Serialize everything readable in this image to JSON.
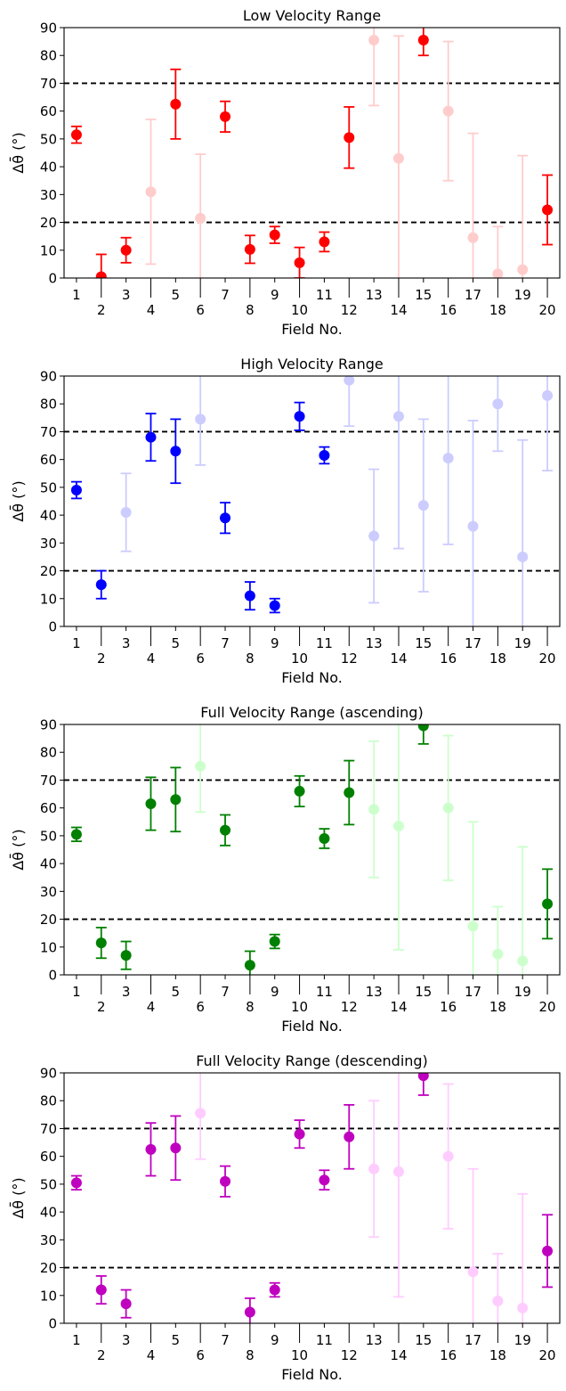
{
  "chart_data": [
    {
      "type": "scatter",
      "title": "Low Velocity Range",
      "xlabel": "Field No.",
      "ylabel": "Δθ̄ (°)",
      "ylim": [
        0,
        90
      ],
      "xlim": [
        0.5,
        20.5
      ],
      "yticks": [
        0,
        10,
        20,
        30,
        40,
        50,
        60,
        70,
        80,
        90
      ],
      "xticks_upper": [
        1,
        3,
        5,
        7,
        9,
        11,
        13,
        15,
        17,
        19
      ],
      "xticks_lower": [
        2,
        4,
        6,
        8,
        10,
        12,
        14,
        16,
        18,
        20
      ],
      "reference_lines": [
        20,
        70
      ],
      "color": "#ff0000",
      "faded_color": "#ffcccc",
      "points": [
        {
          "x": 1,
          "y": 51.5,
          "yerr": 3,
          "faded": false
        },
        {
          "x": 2,
          "y": 0.5,
          "yerr": 8,
          "faded": false
        },
        {
          "x": 3,
          "y": 10,
          "yerr": 4.5,
          "faded": false
        },
        {
          "x": 4,
          "y": 31,
          "yerr": 26,
          "faded": true
        },
        {
          "x": 5,
          "y": 62.5,
          "yerr": 12.5,
          "faded": false
        },
        {
          "x": 6,
          "y": 21.5,
          "yerr": 23,
          "faded": true
        },
        {
          "x": 7,
          "y": 58,
          "yerr": 5.5,
          "faded": false
        },
        {
          "x": 8,
          "y": 10.3,
          "yerr": 5,
          "faded": false
        },
        {
          "x": 9,
          "y": 15.5,
          "yerr": 3,
          "faded": false
        },
        {
          "x": 10,
          "y": 5.5,
          "yerr": 5.5,
          "faded": false
        },
        {
          "x": 11,
          "y": 13,
          "yerr": 3.5,
          "faded": false
        },
        {
          "x": 12,
          "y": 50.5,
          "yerr": 11,
          "faded": false
        },
        {
          "x": 13,
          "y": 85.5,
          "yerr": 23.5,
          "faded": true
        },
        {
          "x": 14,
          "y": 43,
          "yerr": 44,
          "faded": true
        },
        {
          "x": 15,
          "y": 85.5,
          "yerr": 5.5,
          "faded": false
        },
        {
          "x": 16,
          "y": 60,
          "yerr": 25,
          "faded": true
        },
        {
          "x": 17,
          "y": 14.5,
          "yerr": 37.5,
          "faded": true
        },
        {
          "x": 18,
          "y": 1.5,
          "yerr": 17,
          "faded": true
        },
        {
          "x": 19,
          "y": 3,
          "yerr": 41,
          "faded": true
        },
        {
          "x": 20,
          "y": 24.5,
          "yerr": 12.5,
          "faded": false
        }
      ]
    },
    {
      "type": "scatter",
      "title": "High Velocity Range",
      "xlabel": "Field No.",
      "ylabel": "Δθ̄ (°)",
      "ylim": [
        0,
        90
      ],
      "xlim": [
        0.5,
        20.5
      ],
      "yticks": [
        0,
        10,
        20,
        30,
        40,
        50,
        60,
        70,
        80,
        90
      ],
      "xticks_upper": [
        1,
        3,
        5,
        7,
        9,
        11,
        13,
        15,
        17,
        19
      ],
      "xticks_lower": [
        2,
        4,
        6,
        8,
        10,
        12,
        14,
        16,
        18,
        20
      ],
      "reference_lines": [
        20,
        70
      ],
      "color": "#0000ff",
      "faded_color": "#ccccff",
      "points": [
        {
          "x": 1,
          "y": 49,
          "yerr": 3,
          "faded": false
        },
        {
          "x": 2,
          "y": 15,
          "yerr": 5,
          "faded": false
        },
        {
          "x": 3,
          "y": 41,
          "yerr": 14,
          "faded": true
        },
        {
          "x": 4,
          "y": 68,
          "yerr": 8.5,
          "faded": false
        },
        {
          "x": 5,
          "y": 63,
          "yerr": 11.5,
          "faded": false
        },
        {
          "x": 6,
          "y": 74.5,
          "yerr": 16.5,
          "faded": true
        },
        {
          "x": 7,
          "y": 39,
          "yerr": 5.5,
          "faded": false
        },
        {
          "x": 8,
          "y": 11,
          "yerr": 5,
          "faded": false
        },
        {
          "x": 9,
          "y": 7.5,
          "yerr": 2.5,
          "faded": false
        },
        {
          "x": 10,
          "y": 75.5,
          "yerr": 5,
          "faded": false
        },
        {
          "x": 11,
          "y": 61.5,
          "yerr": 3,
          "faded": false
        },
        {
          "x": 12,
          "y": 88.5,
          "yerr": 16.5,
          "faded": true
        },
        {
          "x": 13,
          "y": 32.5,
          "yerr": 24,
          "faded": true
        },
        {
          "x": 14,
          "y": 75.5,
          "yerr": 47.5,
          "faded": true
        },
        {
          "x": 15,
          "y": 43.5,
          "yerr": 31,
          "faded": true
        },
        {
          "x": 16,
          "y": 60.5,
          "yerr": 31,
          "faded": true
        },
        {
          "x": 17,
          "y": 36,
          "yerr": 38,
          "faded": true
        },
        {
          "x": 18,
          "y": 80,
          "yerr": 17,
          "faded": true
        },
        {
          "x": 19,
          "y": 25,
          "yerr": 42,
          "faded": true
        },
        {
          "x": 20,
          "y": 83,
          "yerr": 27,
          "faded": true
        }
      ]
    },
    {
      "type": "scatter",
      "title": "Full Velocity Range (ascending)",
      "xlabel": "Field No.",
      "ylabel": "Δθ̄ (°)",
      "ylim": [
        0,
        90
      ],
      "xlim": [
        0.5,
        20.5
      ],
      "yticks": [
        0,
        10,
        20,
        30,
        40,
        50,
        60,
        70,
        80,
        90
      ],
      "xticks_upper": [
        1,
        3,
        5,
        7,
        9,
        11,
        13,
        15,
        17,
        19
      ],
      "xticks_lower": [
        2,
        4,
        6,
        8,
        10,
        12,
        14,
        16,
        18,
        20
      ],
      "reference_lines": [
        20,
        70
      ],
      "color": "#008000",
      "faded_color": "#ccffcc",
      "points": [
        {
          "x": 1,
          "y": 50.5,
          "yerr": 2.5,
          "faded": false
        },
        {
          "x": 2,
          "y": 11.5,
          "yerr": 5.5,
          "faded": false
        },
        {
          "x": 3,
          "y": 7,
          "yerr": 5,
          "faded": false
        },
        {
          "x": 4,
          "y": 61.5,
          "yerr": 9.5,
          "faded": false
        },
        {
          "x": 5,
          "y": 63,
          "yerr": 11.5,
          "faded": false
        },
        {
          "x": 6,
          "y": 75,
          "yerr": 16.5,
          "faded": true
        },
        {
          "x": 7,
          "y": 52,
          "yerr": 5.5,
          "faded": false
        },
        {
          "x": 8,
          "y": 3.5,
          "yerr": 5,
          "faded": false
        },
        {
          "x": 9,
          "y": 12,
          "yerr": 2.5,
          "faded": false
        },
        {
          "x": 10,
          "y": 66,
          "yerr": 5.5,
          "faded": false
        },
        {
          "x": 11,
          "y": 49,
          "yerr": 3.5,
          "faded": false
        },
        {
          "x": 12,
          "y": 65.5,
          "yerr": 11.5,
          "faded": false
        },
        {
          "x": 13,
          "y": 59.5,
          "yerr": 24.5,
          "faded": true
        },
        {
          "x": 14,
          "y": 53.5,
          "yerr": 44.5,
          "faded": true
        },
        {
          "x": 15,
          "y": 89.5,
          "yerr": 6.5,
          "faded": false
        },
        {
          "x": 16,
          "y": 60,
          "yerr": 26,
          "faded": true
        },
        {
          "x": 17,
          "y": 17.5,
          "yerr": 37.5,
          "faded": true
        },
        {
          "x": 18,
          "y": 7.5,
          "yerr": 17,
          "faded": true
        },
        {
          "x": 19,
          "y": 5,
          "yerr": 41,
          "faded": true
        },
        {
          "x": 20,
          "y": 25.5,
          "yerr": 12.5,
          "faded": false
        }
      ]
    },
    {
      "type": "scatter",
      "title": "Full Velocity Range (descending)",
      "xlabel": "Field No.",
      "ylabel": "Δθ̄ (°)",
      "ylim": [
        0,
        90
      ],
      "xlim": [
        0.5,
        20.5
      ],
      "yticks": [
        0,
        10,
        20,
        30,
        40,
        50,
        60,
        70,
        80,
        90
      ],
      "xticks_upper": [
        1,
        3,
        5,
        7,
        9,
        11,
        13,
        15,
        17,
        19
      ],
      "xticks_lower": [
        2,
        4,
        6,
        8,
        10,
        12,
        14,
        16,
        18,
        20
      ],
      "reference_lines": [
        20,
        70
      ],
      "color": "#bf00bf",
      "faded_color": "#ffccff",
      "points": [
        {
          "x": 1,
          "y": 50.5,
          "yerr": 2.5,
          "faded": false
        },
        {
          "x": 2,
          "y": 12,
          "yerr": 5,
          "faded": false
        },
        {
          "x": 3,
          "y": 7,
          "yerr": 5,
          "faded": false
        },
        {
          "x": 4,
          "y": 62.5,
          "yerr": 9.5,
          "faded": false
        },
        {
          "x": 5,
          "y": 63,
          "yerr": 11.5,
          "faded": false
        },
        {
          "x": 6,
          "y": 75.5,
          "yerr": 16.5,
          "faded": true
        },
        {
          "x": 7,
          "y": 51,
          "yerr": 5.5,
          "faded": false
        },
        {
          "x": 8,
          "y": 4,
          "yerr": 5,
          "faded": false
        },
        {
          "x": 9,
          "y": 12,
          "yerr": 2.5,
          "faded": false
        },
        {
          "x": 10,
          "y": 68,
          "yerr": 5,
          "faded": false
        },
        {
          "x": 11,
          "y": 51.5,
          "yerr": 3.5,
          "faded": false
        },
        {
          "x": 12,
          "y": 67,
          "yerr": 11.5,
          "faded": false
        },
        {
          "x": 13,
          "y": 55.5,
          "yerr": 24.5,
          "faded": true
        },
        {
          "x": 14,
          "y": 54.5,
          "yerr": 45,
          "faded": true
        },
        {
          "x": 15,
          "y": 89,
          "yerr": 7,
          "faded": false
        },
        {
          "x": 16,
          "y": 60,
          "yerr": 26,
          "faded": true
        },
        {
          "x": 17,
          "y": 18.5,
          "yerr": 37,
          "faded": true
        },
        {
          "x": 18,
          "y": 8,
          "yerr": 17,
          "faded": true
        },
        {
          "x": 19,
          "y": 5.5,
          "yerr": 41,
          "faded": true
        },
        {
          "x": 20,
          "y": 26,
          "yerr": 13,
          "faded": false
        }
      ]
    }
  ]
}
